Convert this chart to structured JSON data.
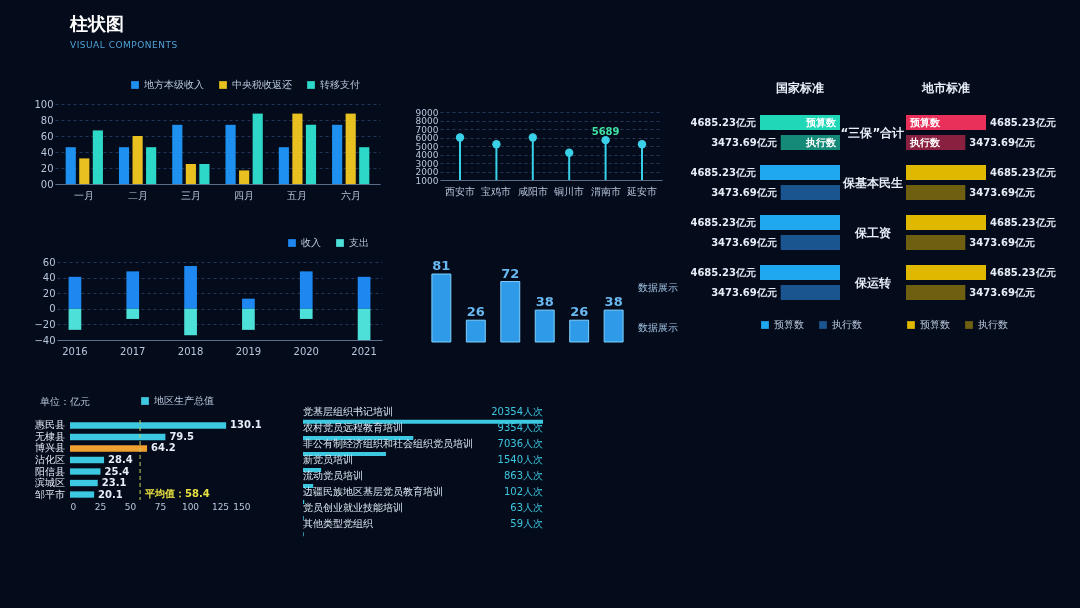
{
  "chart_data": [
    {
      "type": "other",
      "title": "柱状图",
      "subtitle": "VISUAL COMPONENTS"
    },
    {
      "type": "bar",
      "categories": [
        "一月",
        "二月",
        "三月",
        "四月",
        "五月",
        "六月"
      ],
      "series": [
        {
          "name": "地方本级收入",
          "color": "#1e90f0",
          "values": [
            46,
            46,
            74,
            74,
            46,
            74
          ]
        },
        {
          "name": "中央税收返还",
          "color": "#e8c020",
          "values": [
            32,
            60,
            25,
            17,
            88,
            88
          ]
        },
        {
          "name": "转移支付",
          "color": "#2ed8c8",
          "values": [
            67,
            46,
            25,
            88,
            74,
            46
          ]
        }
      ],
      "ylim": [
        0,
        100
      ],
      "yticks": [
        {
          "value": 0,
          "label": "00"
        },
        20,
        40,
        60,
        80,
        100
      ],
      "grid": "y",
      "legend": "top right"
    },
    {
      "type": "lollipop",
      "categories": [
        "西安市",
        "宝鸡市",
        "咸阳市",
        "铜川市",
        "渭南市",
        "延安市"
      ],
      "series": [
        {
          "color": "#3ad0e8",
          "values": [
            6000,
            5200,
            6000,
            4200,
            5689,
            5200
          ],
          "value_labels": [
            null,
            null,
            null,
            null,
            "5689",
            null
          ]
        }
      ],
      "ylim": [
        1000,
        9000
      ],
      "yticks": [
        1000,
        2000,
        3000,
        4000,
        5000,
        6000,
        7000,
        8000,
        9000
      ],
      "grid": "y",
      "marker": "circle"
    },
    {
      "type": "bar",
      "orientation": "horizontal",
      "title": "国家标准",
      "categories": [
        "“三保”合计",
        "保基本民生",
        "保工资",
        "保运转"
      ],
      "series": [
        {
          "name": "预算数",
          "color": "#1fa8f0",
          "colors": [
            "#20d8b8",
            "#1fa8f0",
            "#1fa8f0",
            "#1fa8f0"
          ],
          "values": [
            4685.23,
            4685.23,
            4685.23,
            4685.23
          ],
          "value_labels": [
            "4685.23亿元",
            "4685.23亿元",
            "4685.23亿元",
            "4685.23亿元"
          ]
        },
        {
          "name": "执行数",
          "color": "#1a5590",
          "colors": [
            "#168a78",
            "#1a5590",
            "#1a5590",
            "#1a5590"
          ],
          "values": [
            3473.69,
            3473.69,
            3473.69,
            3473.69
          ],
          "value_labels": [
            "3473.69亿元",
            "3473.69亿元",
            "3473.69亿元",
            "3473.69亿元"
          ]
        }
      ],
      "tick_labels": "y",
      "legend": "bottom",
      "annotations": [
        "预算数",
        "执行数"
      ]
    },
    {
      "type": "bar",
      "orientation": "horizontal",
      "title": "地市标准",
      "categories": [
        null,
        null,
        null,
        null
      ],
      "series": [
        {
          "name": "预算数",
          "color": "#e0b800",
          "colors": [
            "#e8305a",
            "#e0b800",
            "#e0b800",
            "#e0b800"
          ],
          "values": [
            4685.23,
            4685.23,
            4685.23,
            4685.23
          ],
          "value_labels": [
            "4685.23亿元",
            "4685.23亿元",
            "4685.23亿元",
            "4685.23亿元"
          ]
        },
        {
          "name": "执行数",
          "color": "#6e6010",
          "colors": [
            "#8a2040",
            "#6e6010",
            "#6e6010",
            "#6e6010"
          ],
          "values": [
            3473.69,
            3473.69,
            3473.69,
            3473.69
          ],
          "value_labels": [
            "3473.69亿元",
            "3473.69亿元",
            "3473.69亿元",
            "3473.69亿元"
          ]
        }
      ],
      "legend": "bottom",
      "annotations": [
        "预算数",
        "执行数"
      ]
    },
    {
      "type": "bar",
      "stacked": true,
      "categories": [
        "2016",
        "2017",
        "2018",
        "2019",
        "2020",
        "2021"
      ],
      "series": [
        {
          "name": "收入",
          "color": "#1e88f0",
          "values": [
            41,
            48,
            55,
            13,
            48,
            41
          ]
        },
        {
          "name": "支出",
          "color": "#4de0d8",
          "values": [
            -27,
            -13,
            -34,
            -27,
            -13,
            -40
          ]
        }
      ],
      "ylim": [
        -40,
        60
      ],
      "yticks": [
        -40,
        -20,
        0,
        20,
        40,
        60
      ],
      "grid": "y",
      "legend": "top right"
    },
    {
      "type": "bar",
      "categories": [
        null,
        null,
        null,
        null,
        null,
        null
      ],
      "values": [
        81,
        26,
        72,
        38,
        26,
        38
      ],
      "color": "#2f9ae8",
      "data_labels": true,
      "annotations": [
        "数据展示",
        "数据展示"
      ]
    },
    {
      "type": "bar",
      "orientation": "horizontal",
      "categories": [
        "惠民县",
        "无棣县",
        "博兴县",
        "沾化区",
        "阳信县",
        "滨城区",
        "邹平市"
      ],
      "series": [
        {
          "name": "地区生产总值",
          "color": "#3cc8e0",
          "colors": [
            "#3cc8e0",
            "#3cc8e0",
            "#f0a030",
            "#3cc8e0",
            "#3cc8e0",
            "#3cc8e0",
            "#3cc8e0"
          ],
          "values": [
            130.1,
            79.5,
            64.2,
            28.4,
            25.4,
            23.1,
            20.1
          ]
        }
      ],
      "data_labels": true,
      "xlim": [
        0,
        150
      ],
      "xticks": [
        0,
        25,
        50,
        75,
        100,
        125,
        150
      ],
      "legend": "top",
      "annotations": [
        "单位：亿元"
      ],
      "ref_lines": [
        {
          "axis": "x",
          "value": 58.4,
          "label": "平均值：58.4",
          "line_style": "dashed"
        }
      ]
    },
    {
      "type": "bar",
      "orientation": "horizontal",
      "categories": [
        "党基层组织书记培训",
        "农村党员远程教育培训",
        "非公有制经济组织和社会组织党员培训",
        "新党员培训",
        "流动党员培训",
        "边疆民族地区基层党员教育培训",
        "党员创业就业技能培训",
        "其他类型党组织"
      ],
      "values": [
        20354,
        9354,
        7036,
        1540,
        863,
        102,
        63,
        59
      ],
      "color": "#3cc8e0",
      "value_labels": [
        "20354人次",
        "9354人次",
        "7036人次",
        "1540人次",
        "863人次",
        "102人次",
        "63人次",
        "59人次"
      ]
    }
  ]
}
